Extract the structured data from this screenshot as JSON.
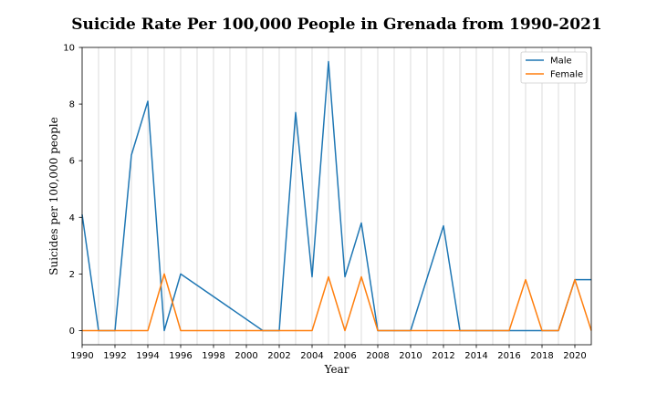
{
  "chart_data": {
    "type": "line",
    "title": "Suicide Rate Per 100,000 People in Grenada from 1990-2021",
    "xlabel": "Year",
    "ylabel": "Suicides per 100,000 people",
    "xlim": [
      1990,
      2021
    ],
    "ylim": [
      -0.5,
      10
    ],
    "x_ticks": [
      "1990",
      "1992",
      "1994",
      "1996",
      "1998",
      "2000",
      "2002",
      "2004",
      "2006",
      "2008",
      "2010",
      "2012",
      "2014",
      "2016",
      "2018",
      "2020"
    ],
    "y_ticks": [
      "0",
      "2",
      "4",
      "6",
      "8",
      "10"
    ],
    "grid": "vertical",
    "legend_position": "top-right",
    "series": [
      {
        "name": "Male",
        "color": "#1f77b4",
        "points": [
          [
            1990,
            4.1
          ],
          [
            1991,
            0
          ],
          [
            1992,
            0
          ],
          [
            1993,
            6.2
          ],
          [
            1994,
            8.1
          ],
          [
            1995,
            0
          ],
          [
            1996,
            2.0
          ],
          [
            2001,
            0
          ],
          [
            2002,
            0
          ],
          [
            2003,
            7.7
          ],
          [
            2004,
            1.9
          ],
          [
            2005,
            9.5
          ],
          [
            2006,
            1.9
          ],
          [
            2007,
            3.8
          ],
          [
            2008,
            0
          ],
          [
            2009,
            0
          ],
          [
            2010,
            0
          ],
          [
            2012,
            3.7
          ],
          [
            2013,
            0
          ],
          [
            2014,
            0
          ],
          [
            2015,
            0
          ],
          [
            2016,
            0
          ],
          [
            2017,
            0
          ],
          [
            2018,
            0
          ],
          [
            2019,
            0
          ],
          [
            2020,
            1.8
          ],
          [
            2021,
            1.8
          ]
        ]
      },
      {
        "name": "Female",
        "color": "#ff7f0e",
        "points": [
          [
            1990,
            0
          ],
          [
            1991,
            0
          ],
          [
            1992,
            0
          ],
          [
            1993,
            0
          ],
          [
            1994,
            0
          ],
          [
            1995,
            2.0
          ],
          [
            1996,
            0
          ],
          [
            2001,
            0
          ],
          [
            2002,
            0
          ],
          [
            2003,
            0
          ],
          [
            2004,
            0
          ],
          [
            2005,
            1.9
          ],
          [
            2006,
            0
          ],
          [
            2007,
            1.9
          ],
          [
            2008,
            0
          ],
          [
            2009,
            0
          ],
          [
            2010,
            0
          ],
          [
            2012,
            0
          ],
          [
            2013,
            0
          ],
          [
            2014,
            0
          ],
          [
            2015,
            0
          ],
          [
            2016,
            0
          ],
          [
            2017,
            1.8
          ],
          [
            2018,
            0
          ],
          [
            2019,
            0
          ],
          [
            2020,
            1.8
          ],
          [
            2021,
            0
          ]
        ]
      }
    ]
  }
}
